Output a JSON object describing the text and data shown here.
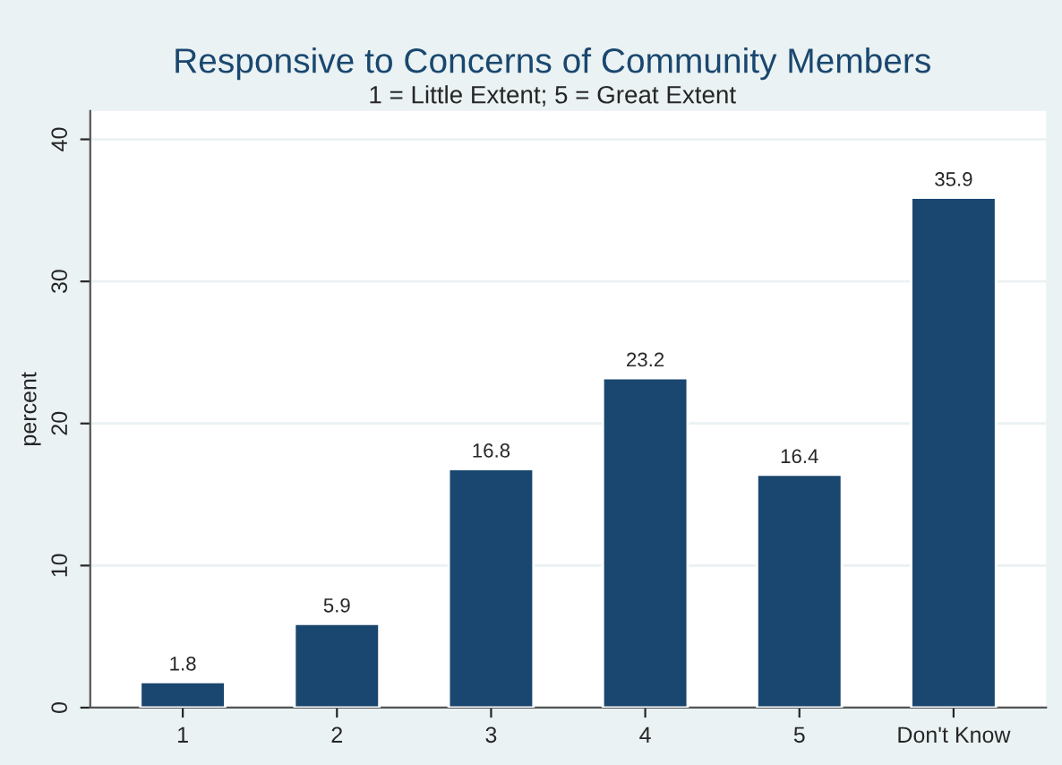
{
  "chart_data": {
    "type": "bar",
    "title": "Responsive to Concerns of Community Members",
    "subtitle": "1 = Little Extent; 5 = Great Extent",
    "ylabel": "percent",
    "categories": [
      "1",
      "2",
      "3",
      "4",
      "5",
      "Don't Know"
    ],
    "values": [
      1.8,
      5.9,
      16.8,
      23.2,
      16.4,
      35.9
    ],
    "color": "#1a476f",
    "ylim": [
      0,
      42
    ],
    "yticks": [
      0,
      10,
      20,
      30,
      40
    ],
    "grid": "y",
    "data_labels": true
  }
}
